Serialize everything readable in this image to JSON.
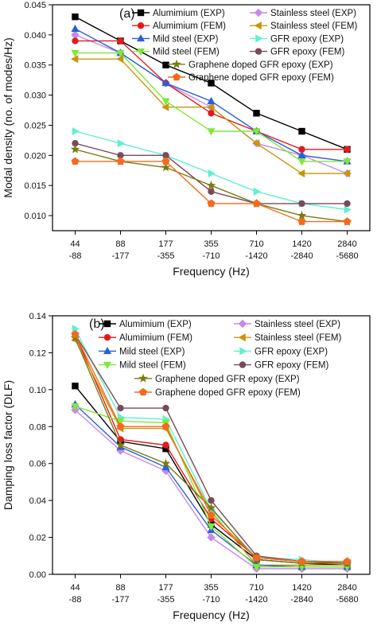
{
  "chart_data": [
    {
      "type": "line",
      "panel_label": "(a)",
      "xlabel": "Frequency (Hz)",
      "ylabel": "Modal density (no. of modes/Hz)",
      "categories": [
        [
          "44",
          "-88"
        ],
        [
          "88",
          "-177"
        ],
        [
          "177",
          "-355"
        ],
        [
          "355",
          "-710"
        ],
        [
          "710",
          "-1420"
        ],
        [
          "1420",
          "-2840"
        ],
        [
          "2840",
          "-5680"
        ]
      ],
      "ylim": [
        0.0075,
        0.045
      ],
      "yticks": [
        "0.010",
        "0.015",
        "0.020",
        "0.025",
        "0.030",
        "0.035",
        "0.040",
        "0.045"
      ],
      "ytick_values": [
        0.01,
        0.015,
        0.02,
        0.025,
        0.03,
        0.035,
        0.04,
        0.045
      ],
      "legend_placement": "top",
      "series": [
        {
          "name": "Alumimium (EXP)",
          "color": "#000000",
          "marker": "square",
          "values": [
            0.043,
            0.039,
            0.035,
            0.032,
            0.027,
            0.024,
            0.021
          ]
        },
        {
          "name": "Stainless steel (EXP)",
          "color": "#c58be8",
          "marker": "diamond",
          "values": [
            0.04,
            0.037,
            0.032,
            0.028,
            0.022,
            0.02,
            0.017
          ]
        },
        {
          "name": "Alumimium (FEM)",
          "color": "#e31a1c",
          "marker": "circle",
          "values": [
            0.039,
            0.039,
            0.032,
            0.027,
            0.024,
            0.021,
            0.021
          ]
        },
        {
          "name": "Stainless steel (FEM)",
          "color": "#c8960c",
          "marker": "tri-left",
          "values": [
            0.036,
            0.036,
            0.028,
            0.028,
            0.022,
            0.017,
            0.017
          ]
        },
        {
          "name": "Mild steel (EXP)",
          "color": "#2a5fd6",
          "marker": "tri-up",
          "values": [
            0.041,
            0.037,
            0.032,
            0.029,
            0.024,
            0.02,
            0.019
          ]
        },
        {
          "name": "GFR epoxy (EXP)",
          "color": "#5ff0d0",
          "marker": "tri-right",
          "values": [
            0.024,
            0.022,
            0.02,
            0.017,
            0.014,
            0.012,
            0.011
          ]
        },
        {
          "name": "Mild steel (FEM)",
          "color": "#7fe83a",
          "marker": "tri-down",
          "values": [
            0.037,
            0.037,
            0.029,
            0.024,
            0.024,
            0.019,
            0.019
          ]
        },
        {
          "name": "GFR epoxy (FEM)",
          "color": "#7a4a5a",
          "marker": "circle",
          "values": [
            0.022,
            0.02,
            0.02,
            0.014,
            0.012,
            0.012,
            0.012
          ]
        },
        {
          "name": "Graphene doped GFR epoxy (EXP)",
          "color": "#7a7a10",
          "marker": "star",
          "values": [
            0.021,
            0.019,
            0.018,
            0.015,
            0.012,
            0.01,
            0.009
          ]
        },
        {
          "name": "Graphene doped GFR epoxy (FEM)",
          "color": "#f26b1d",
          "marker": "pentagon",
          "values": [
            0.019,
            0.019,
            0.019,
            0.012,
            0.012,
            0.009,
            0.009
          ]
        }
      ]
    },
    {
      "type": "line",
      "panel_label": "(b)",
      "xlabel": "Frequency (Hz)",
      "ylabel": "Damping loss factor (DLF)",
      "categories": [
        [
          "44",
          "-88"
        ],
        [
          "88",
          "-177"
        ],
        [
          "177",
          "-355"
        ],
        [
          "355",
          "-710"
        ],
        [
          "710",
          "-1420"
        ],
        [
          "1420",
          "-2840"
        ],
        [
          "2840",
          "-5680"
        ]
      ],
      "ylim": [
        0.0,
        0.14
      ],
      "yticks": [
        "0.00",
        "0.02",
        "0.04",
        "0.06",
        "0.08",
        "0.10",
        "0.12",
        "0.14"
      ],
      "ytick_values": [
        0.0,
        0.02,
        0.04,
        0.06,
        0.08,
        0.1,
        0.12,
        0.14
      ],
      "legend_placement": "top",
      "series": [
        {
          "name": "Alumimium (EXP)",
          "color": "#000000",
          "marker": "square",
          "values": [
            0.102,
            0.072,
            0.068,
            0.027,
            0.008,
            0.006,
            0.005
          ]
        },
        {
          "name": "Stainless steel (EXP)",
          "color": "#c58be8",
          "marker": "diamond",
          "values": [
            0.089,
            0.067,
            0.056,
            0.02,
            0.003,
            0.003,
            0.003
          ]
        },
        {
          "name": "Alumimium (FEM)",
          "color": "#e31a1c",
          "marker": "circle",
          "values": [
            0.13,
            0.073,
            0.07,
            0.03,
            0.009,
            0.007,
            0.006
          ]
        },
        {
          "name": "Stainless steel (FEM)",
          "color": "#c8960c",
          "marker": "tri-left",
          "values": [
            0.127,
            0.079,
            0.079,
            0.034,
            0.005,
            0.005,
            0.005
          ]
        },
        {
          "name": "Mild steel (EXP)",
          "color": "#2a5fd6",
          "marker": "tri-up",
          "values": [
            0.092,
            0.069,
            0.058,
            0.024,
            0.005,
            0.004,
            0.004
          ]
        },
        {
          "name": "GFR epoxy (EXP)",
          "color": "#5ff0d0",
          "marker": "tri-right",
          "values": [
            0.133,
            0.085,
            0.084,
            0.035,
            0.009,
            0.008,
            0.006
          ]
        },
        {
          "name": "Mild steel (FEM)",
          "color": "#7fe83a",
          "marker": "tri-down",
          "values": [
            0.091,
            0.083,
            0.082,
            0.026,
            0.004,
            0.004,
            0.004
          ]
        },
        {
          "name": "GFR epoxy (FEM)",
          "color": "#7a4a5a",
          "marker": "circle",
          "values": [
            0.13,
            0.09,
            0.09,
            0.04,
            0.01,
            0.007,
            0.006
          ]
        },
        {
          "name": "Graphene doped GFR epoxy (EXP)",
          "color": "#7a7a10",
          "marker": "star",
          "values": [
            0.128,
            0.07,
            0.06,
            0.036,
            0.008,
            0.006,
            0.006
          ]
        },
        {
          "name": "Graphene doped GFR epoxy (FEM)",
          "color": "#f26b1d",
          "marker": "pentagon",
          "values": [
            0.13,
            0.08,
            0.08,
            0.032,
            0.009,
            0.007,
            0.007
          ]
        }
      ]
    }
  ]
}
